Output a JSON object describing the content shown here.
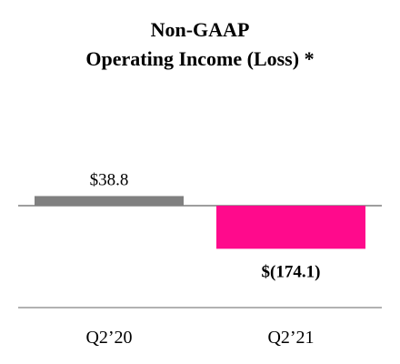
{
  "chart_data": {
    "type": "bar",
    "title_lines": [
      "Non-GAAP",
      "Operating Income (Loss) *"
    ],
    "categories": [
      "Q2’20",
      "Q2’21"
    ],
    "values": [
      38.8,
      -174.1
    ],
    "value_labels": [
      "$38.8",
      "$(174.1)"
    ],
    "colors": [
      "#808080",
      "#FF0A8C"
    ],
    "xlabel": "",
    "ylabel": "",
    "ylim": [
      -413,
      50
    ],
    "grid": false,
    "legend": "none"
  }
}
